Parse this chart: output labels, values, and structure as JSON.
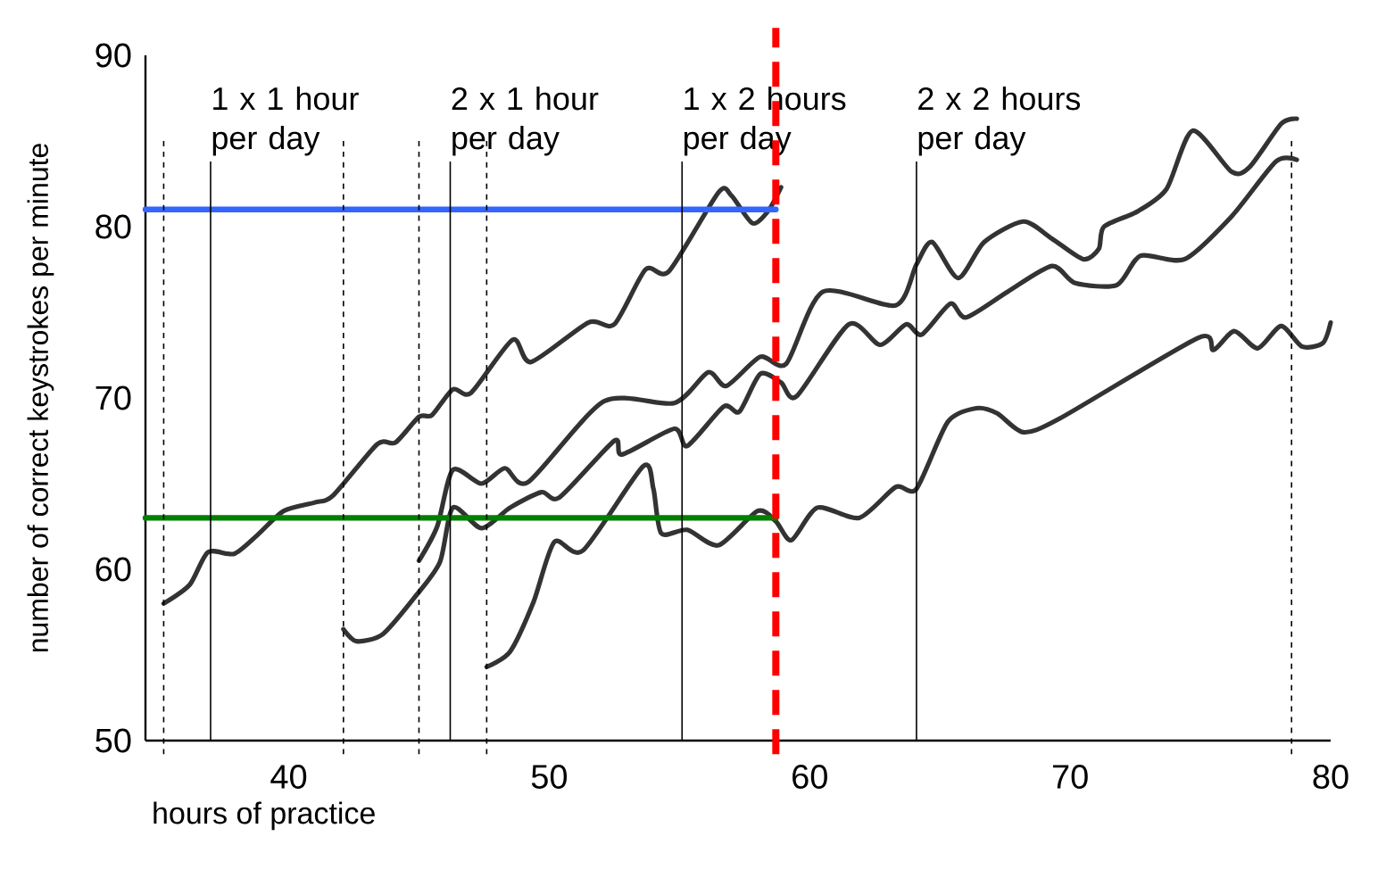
{
  "chart_data": {
    "type": "line",
    "xlabel": "hours of practice",
    "ylabel": "number of correct keystrokes per minute",
    "xlim": [
      34.5,
      80
    ],
    "ylim": [
      50,
      90
    ],
    "xticks": [
      40,
      50,
      60,
      70,
      80
    ],
    "yticks": [
      50,
      60,
      70,
      80,
      90
    ],
    "series": [
      {
        "color": "#333333",
        "x": [
          35.2,
          36.2,
          36.9,
          37.9,
          38.8,
          39.8,
          41.0,
          41.7,
          43.4,
          44.1,
          45.0,
          45.5,
          46.3,
          47.0,
          48.6,
          49.3,
          51.5,
          52.5,
          53.7,
          54.6,
          56.5,
          57.0,
          57.8,
          58.4,
          58.9
        ],
        "values": [
          58.0,
          59.1,
          61.0,
          60.9,
          62.0,
          63.4,
          63.9,
          64.3,
          67.3,
          67.4,
          68.9,
          69.0,
          70.5,
          70.3,
          73.4,
          72.1,
          74.4,
          74.3,
          77.5,
          77.4,
          82.0,
          81.8,
          80.2,
          80.9,
          82.3
        ]
      },
      {
        "color": "#333333",
        "x": [
          45.0,
          45.7,
          46.3,
          47.4,
          48.3,
          49.2,
          52.1,
          54.8,
          56.1,
          56.8,
          58.1,
          59.1,
          60.5,
          63.3,
          64.1,
          64.7,
          65.7,
          66.7,
          68.2,
          69.3,
          70.5,
          71.1,
          71.3,
          72.6,
          73.7,
          74.7,
          76.2,
          76.9,
          78.1,
          78.7
        ],
        "values": [
          60.5,
          62.5,
          65.8,
          65.0,
          65.9,
          65.1,
          69.8,
          69.7,
          71.5,
          70.7,
          72.4,
          72.0,
          76.2,
          75.4,
          77.8,
          79.1,
          77.0,
          79.1,
          80.3,
          79.3,
          78.1,
          78.7,
          80.0,
          80.9,
          82.2,
          85.6,
          83.2,
          83.5,
          86.0,
          86.3
        ]
      },
      {
        "color": "#333333",
        "x": [
          42.1,
          42.6,
          43.6,
          44.8,
          45.8,
          46.3,
          47.4,
          48.5,
          49.7,
          50.4,
          52.5,
          52.8,
          54.8,
          55.3,
          56.7,
          57.3,
          58.1,
          58.9,
          59.5,
          61.5,
          62.7,
          63.7,
          64.3,
          65.4,
          66.0,
          67.6,
          69.3,
          70.2,
          71.8,
          72.7,
          74.4,
          76.2,
          77.9,
          78.7
        ],
        "values": [
          56.5,
          55.8,
          56.2,
          58.3,
          60.4,
          63.6,
          62.4,
          63.6,
          64.5,
          64.2,
          67.5,
          66.7,
          68.2,
          67.2,
          69.5,
          69.2,
          71.4,
          70.9,
          70.1,
          74.3,
          73.1,
          74.3,
          73.7,
          75.5,
          74.7,
          76.2,
          77.7,
          76.7,
          76.6,
          78.3,
          78.1,
          80.6,
          83.8,
          83.9
        ]
      },
      {
        "color": "#333333",
        "x": [
          47.6,
          48.5,
          49.4,
          50.2,
          51.3,
          53.6,
          54.0,
          54.3,
          55.3,
          56.5,
          58.0,
          58.7,
          59.3,
          60.3,
          61.9,
          63.3,
          64.1,
          65.3,
          66.4,
          67.2,
          68.2,
          69.6,
          74.9,
          75.5,
          76.3,
          77.2,
          78.1,
          78.9,
          79.7,
          80.0
        ],
        "values": [
          54.3,
          55.2,
          58.1,
          61.6,
          61.1,
          66.0,
          64.7,
          62.1,
          62.3,
          61.4,
          63.4,
          62.8,
          61.7,
          63.6,
          63.0,
          64.8,
          64.7,
          68.6,
          69.4,
          69.1,
          68.0,
          68.8,
          73.5,
          72.8,
          73.9,
          72.9,
          74.2,
          73.0,
          73.2,
          74.4
        ]
      },
      {
        "type": "line",
        "color": "#3366ff",
        "x": [
          34.5,
          58.7
        ],
        "values": [
          81,
          81
        ]
      },
      {
        "type": "line",
        "color": "#008000",
        "x": [
          34.5,
          58.7
        ],
        "values": [
          63,
          63
        ]
      }
    ],
    "ref_lines": [
      {
        "axis": "x",
        "value": 37.0,
        "label": "1 x 1 hour per day",
        "color": "#000000"
      },
      {
        "axis": "x",
        "value": 46.2,
        "label": "2 x 1 hour per day",
        "color": "#000000"
      },
      {
        "axis": "x",
        "value": 55.1,
        "label": "1 x 2 hours per day",
        "color": "#000000"
      },
      {
        "axis": "x",
        "value": 64.1,
        "label": "2 x 2 hours per day",
        "color": "#000000"
      },
      {
        "axis": "x",
        "value": 35.2,
        "color": "#000000",
        "line_style": "dashed"
      },
      {
        "axis": "x",
        "value": 42.1,
        "color": "#000000",
        "line_style": "dashed"
      },
      {
        "axis": "x",
        "value": 45.0,
        "color": "#000000",
        "line_style": "dashed"
      },
      {
        "axis": "x",
        "value": 47.6,
        "color": "#000000",
        "line_style": "dashed"
      },
      {
        "axis": "x",
        "value": 78.5,
        "color": "#000000",
        "line_style": "dashed"
      },
      {
        "axis": "x",
        "value": 58.7,
        "color": "#ff0000",
        "line_style": "dashed"
      }
    ]
  }
}
